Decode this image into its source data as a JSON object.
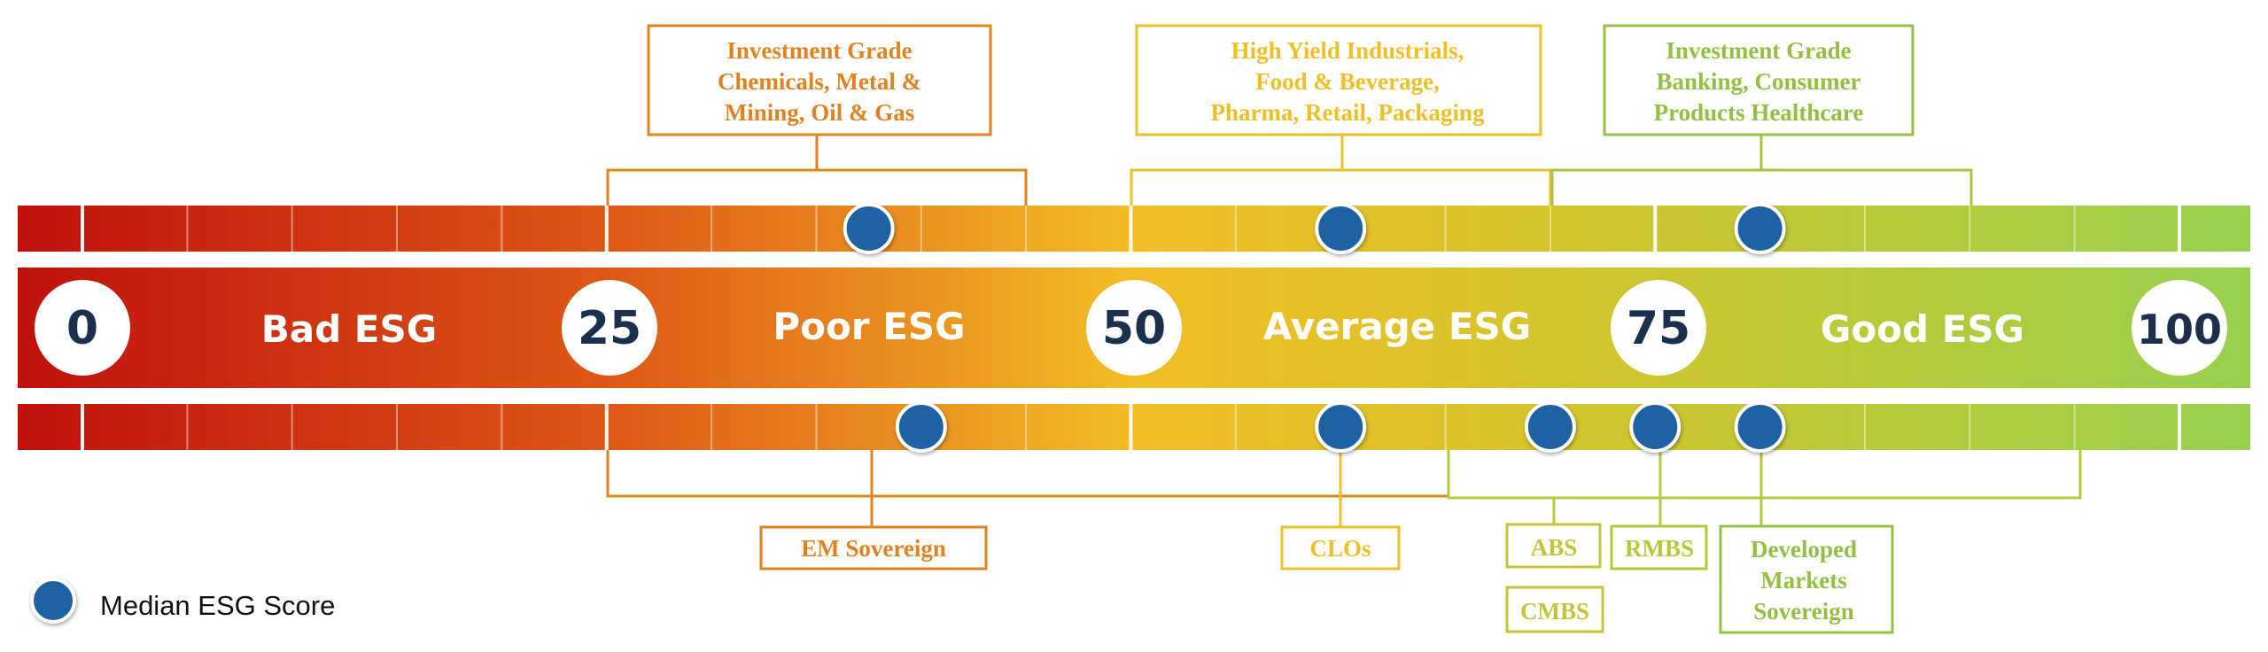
{
  "colors": {
    "bad": "#c4150e",
    "poor": "#df6016",
    "orange": "#e88a1f",
    "yellow": "#f0bf25",
    "olive": "#c6c434",
    "green": "#9bcf4c",
    "dot": "#1f62a3",
    "number": "#1b2f4f"
  },
  "scale": {
    "markers": [
      "0",
      "25",
      "50",
      "75",
      "100"
    ],
    "zones": [
      "Bad ESG",
      "Poor ESG",
      "Average ESG",
      "Good ESG"
    ]
  },
  "top_labels": {
    "ig_chem": [
      "Investment Grade",
      "Chemicals, Metal &",
      "Mining, Oil & Gas"
    ],
    "hy_ind": [
      "High Yield Industrials,",
      "Food & Beverage,",
      "Pharma, Retail, Packaging"
    ],
    "ig_bank": [
      "Investment Grade",
      "Banking, Consumer",
      "Products Healthcare"
    ]
  },
  "bottom_labels": {
    "em_sov": "EM Sovereign",
    "clos": "CLOs",
    "abs": "ABS",
    "cmbs": "CMBS",
    "rmbs": "RMBS",
    "dev_sov": [
      "Developed",
      "Markets",
      "Sovereign"
    ]
  },
  "legend": {
    "label": "Median ESG Score",
    "icon": "blue-circle"
  },
  "chart_data": {
    "type": "scale",
    "range": [
      0,
      100
    ],
    "median_scores": [
      {
        "group": "Investment Grade Chemicals, Metal & Mining, Oil & Gas",
        "median": 37.5
      },
      {
        "group": "High Yield Industrials, Food & Beverage, Pharma, Retail, Packaging",
        "median": 60
      },
      {
        "group": "Investment Grade Banking, Consumer Products Healthcare",
        "median": 80
      },
      {
        "group": "EM Sovereign",
        "median": 40
      },
      {
        "group": "CLOs",
        "median": 60
      },
      {
        "group": "ABS",
        "median": 70
      },
      {
        "group": "CMBS",
        "median": 70
      },
      {
        "group": "RMBS",
        "median": 75
      },
      {
        "group": "Developed Markets Sovereign",
        "median": 80
      }
    ]
  }
}
